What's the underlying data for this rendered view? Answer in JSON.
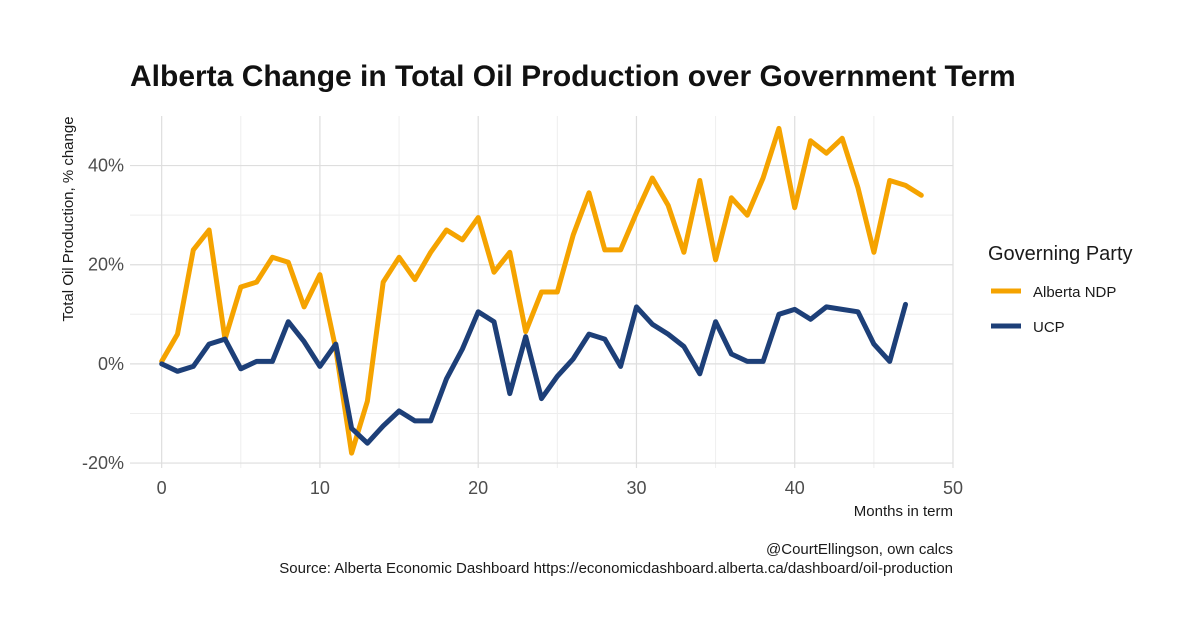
{
  "chart_data": {
    "type": "line",
    "title": "Alberta Change in Total Oil Production over Government Term",
    "xlabel": "Months in term",
    "ylabel": "Total Oil Production, % change",
    "xlim": [
      -2,
      50
    ],
    "ylim": [
      -21,
      50
    ],
    "x_ticks": [
      0,
      10,
      20,
      30,
      40,
      50
    ],
    "y_ticks": [
      -20,
      0,
      20,
      40
    ],
    "y_tick_labels": [
      "-20%",
      "0%",
      "20%",
      "40%"
    ],
    "grid": true,
    "legend": {
      "title": "Governing Party",
      "position": "right"
    },
    "series": [
      {
        "name": "Alberta NDP",
        "color": "#f5a300",
        "x": [
          0,
          1,
          2,
          3,
          4,
          5,
          6,
          7,
          8,
          9,
          10,
          11,
          12,
          13,
          14,
          15,
          16,
          17,
          18,
          19,
          20,
          21,
          22,
          23,
          24,
          25,
          26,
          27,
          28,
          29,
          30,
          31,
          32,
          33,
          34,
          35,
          36,
          37,
          38,
          39,
          40,
          41,
          42,
          43,
          44,
          45,
          46,
          47,
          48
        ],
        "values": [
          0.5,
          6,
          23,
          27,
          5,
          15.5,
          16.5,
          21.5,
          20.5,
          11.5,
          18,
          3,
          -18,
          -7.5,
          16.5,
          21.5,
          17,
          22.5,
          27,
          25,
          29.5,
          18.5,
          22.5,
          6.5,
          14.5,
          14.5,
          26,
          34.5,
          23,
          23,
          30.5,
          37.5,
          32,
          22.5,
          37,
          21,
          33.5,
          30,
          37.5,
          47.5,
          31.5,
          45,
          42.5,
          45.5,
          35.5,
          22.5,
          37,
          36,
          34
        ]
      },
      {
        "name": "UCP",
        "color": "#1d3f78",
        "x": [
          0,
          1,
          2,
          3,
          4,
          5,
          6,
          7,
          8,
          9,
          10,
          11,
          12,
          13,
          14,
          15,
          16,
          17,
          18,
          19,
          20,
          21,
          22,
          23,
          24,
          25,
          26,
          27,
          28,
          29,
          30,
          31,
          32,
          33,
          34,
          35,
          36,
          37,
          38,
          39,
          40,
          41,
          42,
          43,
          44,
          45,
          46,
          47
        ],
        "values": [
          0,
          -1.5,
          -0.5,
          4,
          5,
          -1,
          0.5,
          0.5,
          8.5,
          4.5,
          -0.5,
          4,
          -13,
          -16,
          -12.5,
          -9.5,
          -11.5,
          -11.5,
          -3,
          3,
          10.5,
          8.5,
          -6,
          5.5,
          -7,
          -2.5,
          1,
          6,
          5,
          -0.5,
          11.5,
          8,
          6,
          3.5,
          -2,
          8.5,
          2,
          0.5,
          0.5,
          10,
          11,
          9,
          11.5,
          11,
          10.5,
          4,
          0.5,
          12
        ]
      }
    ]
  },
  "caption": {
    "line1": "@CourtEllingson, own calcs",
    "line2": "Source: Alberta Economic Dashboard https://economicdashboard.alberta.ca/dashboard/oil-production"
  }
}
